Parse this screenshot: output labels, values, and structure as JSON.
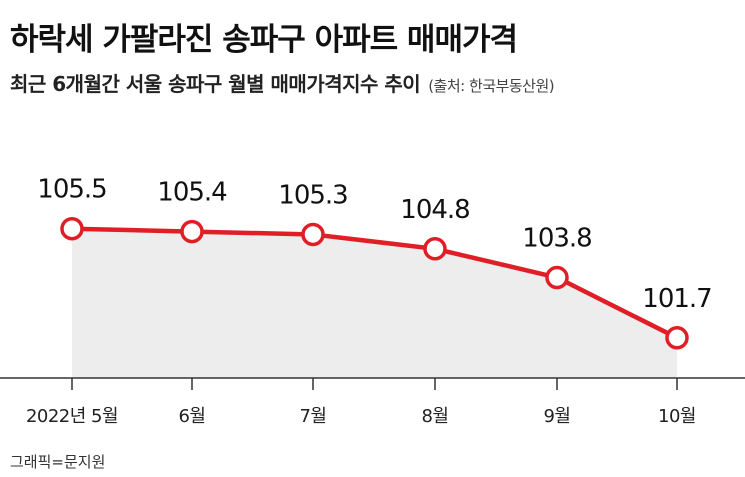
{
  "title": "하락세 가팔라진 송파구 아파트 매매가격",
  "subtitle": "최근 6개월간 서울 송파구 월별 매매가격지수 추이",
  "source": "(출처: 한국부동산원)",
  "credit": "그래픽=문지원",
  "colors": {
    "line": "#e01e26",
    "area": "#ededed",
    "axis": "#333333",
    "marker_fill": "#ffffff"
  },
  "chart_data": {
    "type": "line",
    "categories": [
      "2022년 5월",
      "6월",
      "7월",
      "8월",
      "9월",
      "10월"
    ],
    "values": [
      105.5,
      105.4,
      105.3,
      104.8,
      103.8,
      101.7
    ],
    "labels": [
      "105.5",
      "105.4",
      "105.3",
      "104.8",
      "103.8",
      "101.7"
    ],
    "title": "하락세 가팔라진 송파구 아파트 매매가격",
    "subtitle": "최근 6개월간 서울 송파구 월별 매매가격지수 추이",
    "xlabel": "",
    "ylabel": "",
    "ylim": [
      100.3,
      106.5
    ],
    "grid": false,
    "legend": "none",
    "area_fill": true
  }
}
